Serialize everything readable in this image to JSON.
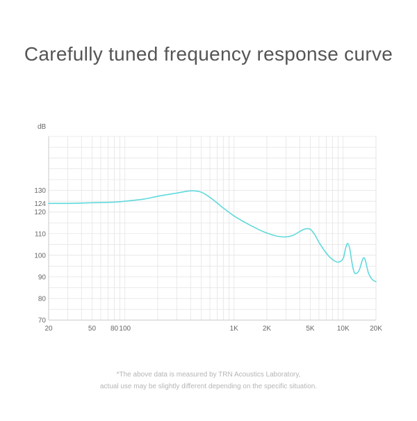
{
  "headline": "Carefully tuned frequency response curve",
  "footnote": {
    "line1": "*The above data is measured by TRN Acoustics Laboratory,",
    "line2": "actual use may be slightly different depending on the specific situation."
  },
  "colors": {
    "curve": "#5fd9dc",
    "grid": "#e4e4e4",
    "axis": "#c8c8c8",
    "text": "#555555"
  },
  "chart_data": {
    "type": "line",
    "title": "",
    "xlabel": "",
    "ylabel": "dB",
    "x_scale": "log",
    "xlim": [
      20,
      20000
    ],
    "ylim": [
      70,
      155
    ],
    "grid": true,
    "legend": "none",
    "x_ticks": [
      {
        "value": 20,
        "label": "20"
      },
      {
        "value": 50,
        "label": "50"
      },
      {
        "value": 80,
        "label": "80"
      },
      {
        "value": 100,
        "label": "100"
      },
      {
        "value": 1000,
        "label": "1K"
      },
      {
        "value": 2000,
        "label": "2K"
      },
      {
        "value": 5000,
        "label": "5K"
      },
      {
        "value": 10000,
        "label": "10K"
      },
      {
        "value": 20000,
        "label": "20K"
      }
    ],
    "y_ticks": [
      {
        "value": 70,
        "label": "70"
      },
      {
        "value": 80,
        "label": "80"
      },
      {
        "value": 90,
        "label": "90"
      },
      {
        "value": 100,
        "label": "100"
      },
      {
        "value": 110,
        "label": "110"
      },
      {
        "value": 120,
        "label": "120"
      },
      {
        "value": 124,
        "label": "124"
      },
      {
        "value": 130,
        "label": "130"
      }
    ],
    "series": [
      {
        "x": [
          20,
          30,
          50,
          80,
          100,
          150,
          200,
          300,
          400,
          500,
          600,
          700,
          800,
          1000,
          1300,
          1700,
          2000,
          2500,
          3000,
          3500,
          4000,
          4500,
          5000,
          5500,
          6000,
          7000,
          8000,
          9000,
          10000,
          10500,
          11000,
          11500,
          12000,
          12500,
          13000,
          14000,
          15000,
          15500,
          16000,
          17000,
          18000,
          19000,
          20000
        ],
        "y": [
          124,
          124,
          124.3,
          124.6,
          125,
          126,
          127.3,
          128.8,
          129.8,
          129.2,
          126.8,
          124.2,
          121.8,
          118.2,
          114.8,
          111.8,
          110.3,
          108.8,
          108.5,
          109.3,
          111,
          112.2,
          112,
          109.5,
          106,
          101,
          98,
          96.8,
          98.5,
          103,
          105.5,
          103,
          97,
          92.8,
          91.5,
          93,
          97.8,
          98.8,
          97.5,
          92,
          89.5,
          88.3,
          87.8
        ]
      }
    ]
  }
}
